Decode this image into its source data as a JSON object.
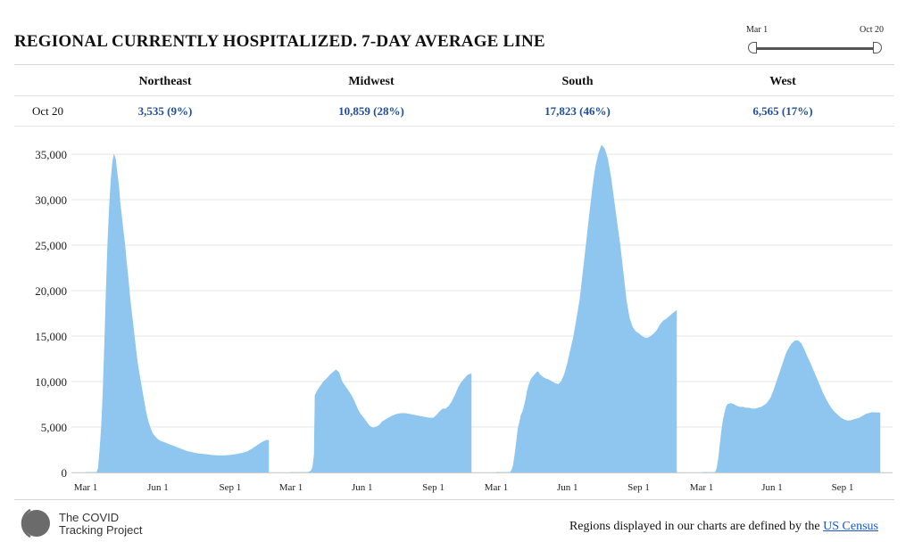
{
  "title": "REGIONAL CURRENTLY HOSPITALIZED. 7-DAY AVERAGE LINE",
  "slider": {
    "start_label": "Mar 1",
    "end_label": "Oct 20"
  },
  "summary": {
    "date_label": "Oct 20",
    "regions": [
      {
        "name": "Northeast",
        "value": "3,535 (9%)"
      },
      {
        "name": "Midwest",
        "value": "10,859 (28%)"
      },
      {
        "name": "South",
        "value": "17,823 (46%)"
      },
      {
        "name": "West",
        "value": "6,565 (17%)"
      }
    ]
  },
  "footer": {
    "logo_line1": "The COVID",
    "logo_line2": "Tracking Project",
    "note_prefix": "Regions displayed in our charts are defined by the",
    "note_link": "US Census"
  },
  "colors": {
    "area": "#8ec6f0",
    "grid": "#e6e6e6",
    "value_text": "#1f4e9c",
    "link": "#1a56c9"
  },
  "chart_data": {
    "type": "area",
    "title": "REGIONAL CURRENTLY HOSPITALIZED. 7-DAY AVERAGE LINE",
    "xlabel": "",
    "ylabel": "",
    "ylim": [
      0,
      37000
    ],
    "yticks": [
      0,
      5000,
      10000,
      15000,
      20000,
      25000,
      30000,
      35000
    ],
    "ytick_labels": [
      "0",
      "5,000",
      "10,000",
      "15,000",
      "20,000",
      "25,000",
      "30,000",
      "35,000"
    ],
    "x_domain_days": [
      0,
      233
    ],
    "xticks": [
      {
        "day": 0,
        "label": "Mar 1"
      },
      {
        "day": 92,
        "label": "Jun 1"
      },
      {
        "day": 184,
        "label": "Sep 1"
      }
    ],
    "series": [
      {
        "name": "Northeast",
        "points": [
          [
            0,
            0
          ],
          [
            14,
            0
          ],
          [
            16,
            500
          ],
          [
            18,
            2500
          ],
          [
            20,
            5000
          ],
          [
            22,
            9000
          ],
          [
            24,
            14000
          ],
          [
            26,
            20000
          ],
          [
            28,
            25000
          ],
          [
            30,
            29000
          ],
          [
            32,
            32000
          ],
          [
            34,
            34000
          ],
          [
            36,
            35000
          ],
          [
            38,
            34500
          ],
          [
            40,
            33000
          ],
          [
            42,
            31500
          ],
          [
            44,
            29500
          ],
          [
            46,
            28000
          ],
          [
            48,
            26500
          ],
          [
            50,
            25000
          ],
          [
            52,
            23000
          ],
          [
            54,
            21500
          ],
          [
            56,
            19500
          ],
          [
            58,
            18000
          ],
          [
            60,
            16500
          ],
          [
            62,
            15000
          ],
          [
            64,
            13500
          ],
          [
            66,
            12000
          ],
          [
            68,
            11000
          ],
          [
            70,
            10000
          ],
          [
            72,
            9000
          ],
          [
            74,
            8000
          ],
          [
            76,
            7000
          ],
          [
            78,
            6200
          ],
          [
            80,
            5500
          ],
          [
            82,
            5000
          ],
          [
            84,
            4500
          ],
          [
            86,
            4200
          ],
          [
            88,
            4000
          ],
          [
            90,
            3800
          ],
          [
            94,
            3500
          ],
          [
            100,
            3300
          ],
          [
            106,
            3100
          ],
          [
            112,
            2900
          ],
          [
            118,
            2700
          ],
          [
            124,
            2500
          ],
          [
            130,
            2300
          ],
          [
            136,
            2200
          ],
          [
            144,
            2050
          ],
          [
            152,
            2000
          ],
          [
            160,
            1900
          ],
          [
            168,
            1850
          ],
          [
            176,
            1850
          ],
          [
            184,
            1900
          ],
          [
            192,
            2000
          ],
          [
            200,
            2150
          ],
          [
            206,
            2300
          ],
          [
            212,
            2600
          ],
          [
            218,
            2950
          ],
          [
            224,
            3300
          ],
          [
            230,
            3550
          ],
          [
            233,
            3535
          ]
        ]
      },
      {
        "name": "Midwest",
        "points": [
          [
            0,
            0
          ],
          [
            22,
            0
          ],
          [
            26,
            200
          ],
          [
            28,
            600
          ],
          [
            30,
            2000
          ],
          [
            31,
            8500
          ],
          [
            34,
            9000
          ],
          [
            38,
            9500
          ],
          [
            42,
            10000
          ],
          [
            46,
            10300
          ],
          [
            50,
            10700
          ],
          [
            54,
            11000
          ],
          [
            58,
            11300
          ],
          [
            62,
            11000
          ],
          [
            66,
            10000
          ],
          [
            70,
            9500
          ],
          [
            74,
            9000
          ],
          [
            78,
            8500
          ],
          [
            82,
            7800
          ],
          [
            86,
            7000
          ],
          [
            90,
            6400
          ],
          [
            94,
            6000
          ],
          [
            98,
            5500
          ],
          [
            102,
            5100
          ],
          [
            106,
            4900
          ],
          [
            110,
            5000
          ],
          [
            114,
            5200
          ],
          [
            118,
            5600
          ],
          [
            124,
            5900
          ],
          [
            130,
            6200
          ],
          [
            136,
            6400
          ],
          [
            142,
            6500
          ],
          [
            148,
            6500
          ],
          [
            154,
            6400
          ],
          [
            160,
            6300
          ],
          [
            166,
            6200
          ],
          [
            172,
            6100
          ],
          [
            178,
            6000
          ],
          [
            184,
            6000
          ],
          [
            188,
            6300
          ],
          [
            192,
            6700
          ],
          [
            196,
            7000
          ],
          [
            200,
            7000
          ],
          [
            204,
            7300
          ],
          [
            208,
            7800
          ],
          [
            212,
            8500
          ],
          [
            216,
            9300
          ],
          [
            220,
            9900
          ],
          [
            224,
            10300
          ],
          [
            228,
            10700
          ],
          [
            233,
            10859
          ]
        ]
      },
      {
        "name": "South",
        "points": [
          [
            0,
            0
          ],
          [
            18,
            0
          ],
          [
            20,
            300
          ],
          [
            22,
            800
          ],
          [
            24,
            2000
          ],
          [
            26,
            3300
          ],
          [
            28,
            4800
          ],
          [
            30,
            5500
          ],
          [
            32,
            6300
          ],
          [
            34,
            6700
          ],
          [
            36,
            7300
          ],
          [
            38,
            8000
          ],
          [
            40,
            9000
          ],
          [
            42,
            9600
          ],
          [
            44,
            10100
          ],
          [
            46,
            10400
          ],
          [
            48,
            10600
          ],
          [
            50,
            10800
          ],
          [
            52,
            11000
          ],
          [
            54,
            11100
          ],
          [
            56,
            10800
          ],
          [
            60,
            10500
          ],
          [
            64,
            10300
          ],
          [
            68,
            10200
          ],
          [
            72,
            10000
          ],
          [
            76,
            9800
          ],
          [
            80,
            9700
          ],
          [
            84,
            10000
          ],
          [
            88,
            10800
          ],
          [
            92,
            12000
          ],
          [
            96,
            13500
          ],
          [
            100,
            15000
          ],
          [
            104,
            17000
          ],
          [
            108,
            19000
          ],
          [
            112,
            22000
          ],
          [
            116,
            25000
          ],
          [
            120,
            28000
          ],
          [
            124,
            31000
          ],
          [
            128,
            33500
          ],
          [
            132,
            35000
          ],
          [
            136,
            36000
          ],
          [
            140,
            35600
          ],
          [
            144,
            34500
          ],
          [
            148,
            32500
          ],
          [
            152,
            30000
          ],
          [
            156,
            27500
          ],
          [
            160,
            25000
          ],
          [
            164,
            22000
          ],
          [
            168,
            19000
          ],
          [
            172,
            17000
          ],
          [
            176,
            16000
          ],
          [
            180,
            15500
          ],
          [
            184,
            15300
          ],
          [
            188,
            15000
          ],
          [
            192,
            14800
          ],
          [
            196,
            14800
          ],
          [
            200,
            15000
          ],
          [
            204,
            15300
          ],
          [
            208,
            15700
          ],
          [
            212,
            16300
          ],
          [
            216,
            16700
          ],
          [
            220,
            16900
          ],
          [
            224,
            17200
          ],
          [
            228,
            17500
          ],
          [
            233,
            17823
          ]
        ]
      },
      {
        "name": "West",
        "points": [
          [
            0,
            0
          ],
          [
            18,
            0
          ],
          [
            20,
            500
          ],
          [
            22,
            1500
          ],
          [
            24,
            3000
          ],
          [
            26,
            4500
          ],
          [
            28,
            5700
          ],
          [
            30,
            6500
          ],
          [
            32,
            7200
          ],
          [
            34,
            7500
          ],
          [
            38,
            7600
          ],
          [
            42,
            7500
          ],
          [
            46,
            7300
          ],
          [
            50,
            7200
          ],
          [
            54,
            7200
          ],
          [
            58,
            7100
          ],
          [
            62,
            7100
          ],
          [
            66,
            7000
          ],
          [
            70,
            7000
          ],
          [
            74,
            7100
          ],
          [
            78,
            7200
          ],
          [
            82,
            7400
          ],
          [
            86,
            7700
          ],
          [
            90,
            8200
          ],
          [
            94,
            9000
          ],
          [
            98,
            10000
          ],
          [
            102,
            11000
          ],
          [
            106,
            12000
          ],
          [
            110,
            13000
          ],
          [
            114,
            13700
          ],
          [
            118,
            14200
          ],
          [
            122,
            14500
          ],
          [
            126,
            14500
          ],
          [
            130,
            14200
          ],
          [
            134,
            13500
          ],
          [
            138,
            12700
          ],
          [
            142,
            12000
          ],
          [
            146,
            11200
          ],
          [
            150,
            10400
          ],
          [
            154,
            9600
          ],
          [
            158,
            8800
          ],
          [
            162,
            8100
          ],
          [
            166,
            7500
          ],
          [
            170,
            7000
          ],
          [
            174,
            6600
          ],
          [
            178,
            6300
          ],
          [
            182,
            6000
          ],
          [
            186,
            5800
          ],
          [
            190,
            5700
          ],
          [
            194,
            5700
          ],
          [
            198,
            5800
          ],
          [
            202,
            5900
          ],
          [
            206,
            6000
          ],
          [
            210,
            6200
          ],
          [
            214,
            6400
          ],
          [
            218,
            6500
          ],
          [
            222,
            6600
          ],
          [
            228,
            6580
          ],
          [
            233,
            6565
          ]
        ]
      }
    ]
  }
}
